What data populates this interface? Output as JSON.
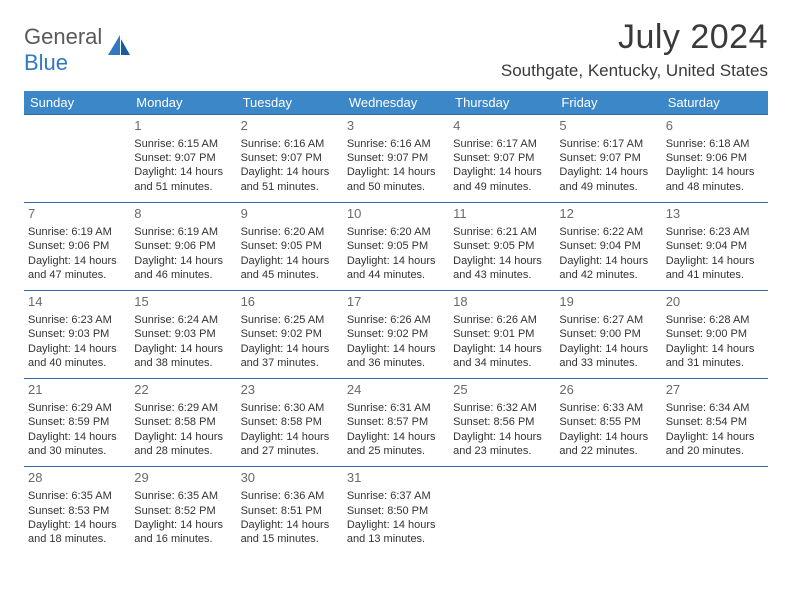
{
  "brand": {
    "general": "General",
    "blue": "Blue"
  },
  "title": "July 2024",
  "location": "Southgate, Kentucky, United States",
  "day_headers": [
    "Sunday",
    "Monday",
    "Tuesday",
    "Wednesday",
    "Thursday",
    "Friday",
    "Saturday"
  ],
  "colors": {
    "header_bg": "#3b87c8",
    "header_text": "#ffffff",
    "cell_border": "#2f6aa8",
    "brand_blue": "#2f78c3",
    "brand_gray": "#5a5a5a",
    "text": "#333333",
    "daynum": "#6a6a6a",
    "background": "#ffffff"
  },
  "weeks": [
    [
      null,
      {
        "n": "1",
        "sr": "Sunrise: 6:15 AM",
        "ss": "Sunset: 9:07 PM",
        "dl": "Daylight: 14 hours and 51 minutes."
      },
      {
        "n": "2",
        "sr": "Sunrise: 6:16 AM",
        "ss": "Sunset: 9:07 PM",
        "dl": "Daylight: 14 hours and 51 minutes."
      },
      {
        "n": "3",
        "sr": "Sunrise: 6:16 AM",
        "ss": "Sunset: 9:07 PM",
        "dl": "Daylight: 14 hours and 50 minutes."
      },
      {
        "n": "4",
        "sr": "Sunrise: 6:17 AM",
        "ss": "Sunset: 9:07 PM",
        "dl": "Daylight: 14 hours and 49 minutes."
      },
      {
        "n": "5",
        "sr": "Sunrise: 6:17 AM",
        "ss": "Sunset: 9:07 PM",
        "dl": "Daylight: 14 hours and 49 minutes."
      },
      {
        "n": "6",
        "sr": "Sunrise: 6:18 AM",
        "ss": "Sunset: 9:06 PM",
        "dl": "Daylight: 14 hours and 48 minutes."
      }
    ],
    [
      {
        "n": "7",
        "sr": "Sunrise: 6:19 AM",
        "ss": "Sunset: 9:06 PM",
        "dl": "Daylight: 14 hours and 47 minutes."
      },
      {
        "n": "8",
        "sr": "Sunrise: 6:19 AM",
        "ss": "Sunset: 9:06 PM",
        "dl": "Daylight: 14 hours and 46 minutes."
      },
      {
        "n": "9",
        "sr": "Sunrise: 6:20 AM",
        "ss": "Sunset: 9:05 PM",
        "dl": "Daylight: 14 hours and 45 minutes."
      },
      {
        "n": "10",
        "sr": "Sunrise: 6:20 AM",
        "ss": "Sunset: 9:05 PM",
        "dl": "Daylight: 14 hours and 44 minutes."
      },
      {
        "n": "11",
        "sr": "Sunrise: 6:21 AM",
        "ss": "Sunset: 9:05 PM",
        "dl": "Daylight: 14 hours and 43 minutes."
      },
      {
        "n": "12",
        "sr": "Sunrise: 6:22 AM",
        "ss": "Sunset: 9:04 PM",
        "dl": "Daylight: 14 hours and 42 minutes."
      },
      {
        "n": "13",
        "sr": "Sunrise: 6:23 AM",
        "ss": "Sunset: 9:04 PM",
        "dl": "Daylight: 14 hours and 41 minutes."
      }
    ],
    [
      {
        "n": "14",
        "sr": "Sunrise: 6:23 AM",
        "ss": "Sunset: 9:03 PM",
        "dl": "Daylight: 14 hours and 40 minutes."
      },
      {
        "n": "15",
        "sr": "Sunrise: 6:24 AM",
        "ss": "Sunset: 9:03 PM",
        "dl": "Daylight: 14 hours and 38 minutes."
      },
      {
        "n": "16",
        "sr": "Sunrise: 6:25 AM",
        "ss": "Sunset: 9:02 PM",
        "dl": "Daylight: 14 hours and 37 minutes."
      },
      {
        "n": "17",
        "sr": "Sunrise: 6:26 AM",
        "ss": "Sunset: 9:02 PM",
        "dl": "Daylight: 14 hours and 36 minutes."
      },
      {
        "n": "18",
        "sr": "Sunrise: 6:26 AM",
        "ss": "Sunset: 9:01 PM",
        "dl": "Daylight: 14 hours and 34 minutes."
      },
      {
        "n": "19",
        "sr": "Sunrise: 6:27 AM",
        "ss": "Sunset: 9:00 PM",
        "dl": "Daylight: 14 hours and 33 minutes."
      },
      {
        "n": "20",
        "sr": "Sunrise: 6:28 AM",
        "ss": "Sunset: 9:00 PM",
        "dl": "Daylight: 14 hours and 31 minutes."
      }
    ],
    [
      {
        "n": "21",
        "sr": "Sunrise: 6:29 AM",
        "ss": "Sunset: 8:59 PM",
        "dl": "Daylight: 14 hours and 30 minutes."
      },
      {
        "n": "22",
        "sr": "Sunrise: 6:29 AM",
        "ss": "Sunset: 8:58 PM",
        "dl": "Daylight: 14 hours and 28 minutes."
      },
      {
        "n": "23",
        "sr": "Sunrise: 6:30 AM",
        "ss": "Sunset: 8:58 PM",
        "dl": "Daylight: 14 hours and 27 minutes."
      },
      {
        "n": "24",
        "sr": "Sunrise: 6:31 AM",
        "ss": "Sunset: 8:57 PM",
        "dl": "Daylight: 14 hours and 25 minutes."
      },
      {
        "n": "25",
        "sr": "Sunrise: 6:32 AM",
        "ss": "Sunset: 8:56 PM",
        "dl": "Daylight: 14 hours and 23 minutes."
      },
      {
        "n": "26",
        "sr": "Sunrise: 6:33 AM",
        "ss": "Sunset: 8:55 PM",
        "dl": "Daylight: 14 hours and 22 minutes."
      },
      {
        "n": "27",
        "sr": "Sunrise: 6:34 AM",
        "ss": "Sunset: 8:54 PM",
        "dl": "Daylight: 14 hours and 20 minutes."
      }
    ],
    [
      {
        "n": "28",
        "sr": "Sunrise: 6:35 AM",
        "ss": "Sunset: 8:53 PM",
        "dl": "Daylight: 14 hours and 18 minutes."
      },
      {
        "n": "29",
        "sr": "Sunrise: 6:35 AM",
        "ss": "Sunset: 8:52 PM",
        "dl": "Daylight: 14 hours and 16 minutes."
      },
      {
        "n": "30",
        "sr": "Sunrise: 6:36 AM",
        "ss": "Sunset: 8:51 PM",
        "dl": "Daylight: 14 hours and 15 minutes."
      },
      {
        "n": "31",
        "sr": "Sunrise: 6:37 AM",
        "ss": "Sunset: 8:50 PM",
        "dl": "Daylight: 14 hours and 13 minutes."
      },
      null,
      null,
      null
    ]
  ]
}
